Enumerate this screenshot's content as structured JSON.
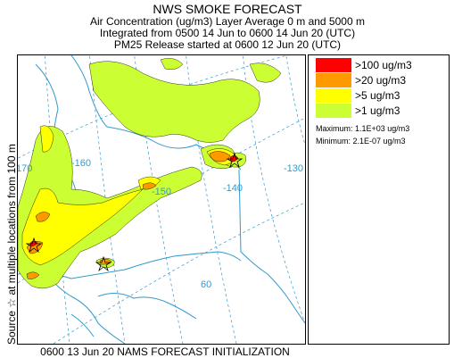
{
  "header": {
    "title": "NWS SMOKE FORECAST",
    "line1": "Air Concentration (ug/m3) Layer Average    0 m and  5000 m",
    "line2": "Integrated from 0500 14 Jun to 0600 14 Jun 20 (UTC)",
    "line3": "PM25 Release started at 0600 12 Jun 20 (UTC)"
  },
  "side_label": "Source ☆ at multiple locations   from   100 m",
  "footer": "0600 13 Jun 20 NAMS FORECAST INITIALIZATION",
  "map": {
    "graticule_labels": {
      "lon_170": "170",
      "lon_160": "-160",
      "lon_150": "-150",
      "lon_140": "-140",
      "lon_130": "-130",
      "lat_60": "60"
    },
    "colors": {
      "gt100": "#ff0000",
      "gt20": "#ff9900",
      "gt5": "#ffff00",
      "gt1": "#ccff33",
      "coast": "#3399cc",
      "graticule": "#3399cc"
    }
  },
  "legend": {
    "items": [
      {
        "label": ">100 ug/m3",
        "color": "#ff0000"
      },
      {
        "label": ">20 ug/m3",
        "color": "#ff9900"
      },
      {
        "label": ">5 ug/m3",
        "color": "#ffff00"
      },
      {
        "label": ">1 ug/m3",
        "color": "#ccff33"
      }
    ],
    "maximum": "Maximum: 1.1E+03 ug/m3",
    "minimum": "Minimum: 2.1E-07 ug/m3"
  }
}
